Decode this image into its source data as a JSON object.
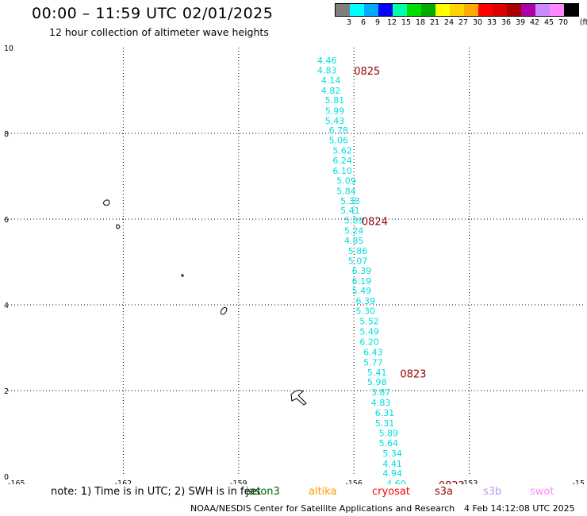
{
  "title": "00:00 – 11:59 UTC 02/01/2025",
  "subtitle": "12 hour collection of altimeter wave heights",
  "color_scale": {
    "unit": "(ft)",
    "colors": [
      "#7f7f7f",
      "#00ffff",
      "#00aaff",
      "#0000ff",
      "#00ffaa",
      "#00dd00",
      "#00aa00",
      "#ffff00",
      "#ffd200",
      "#ffaa00",
      "#ff0000",
      "#dd0000",
      "#aa0000",
      "#aa00aa",
      "#cc88ff",
      "#ff88ff",
      "#000000"
    ],
    "labels": [
      "3",
      "6",
      "9",
      "12",
      "15",
      "18",
      "21",
      "24",
      "27",
      "30",
      "33",
      "36",
      "39",
      "42",
      "45",
      "70"
    ]
  },
  "axes": {
    "x_ticks": [
      "-165",
      "-162",
      "-159",
      "-156",
      "-153",
      "-15"
    ],
    "y_ticks": [
      "10",
      "8",
      "6",
      "4",
      "2",
      "0"
    ]
  },
  "chart_data": {
    "type": "scatter",
    "title": "12 hour collection of altimeter wave heights",
    "x_range": [
      -165,
      -150
    ],
    "y_range": [
      0,
      10
    ],
    "grid": true,
    "track_color": "#00dddd",
    "points": [
      {
        "lon": -156.7,
        "lat": 9.7,
        "swh": "4.46"
      },
      {
        "lon": -156.7,
        "lat": 9.47,
        "swh": "4.83"
      },
      {
        "lon": -156.6,
        "lat": 9.24,
        "swh": "4.14"
      },
      {
        "lon": -156.6,
        "lat": 9.0,
        "swh": "4.82"
      },
      {
        "lon": -156.5,
        "lat": 8.78,
        "swh": "5.81"
      },
      {
        "lon": -156.5,
        "lat": 8.53,
        "swh": "5.99"
      },
      {
        "lon": -156.5,
        "lat": 8.3,
        "swh": "5.43"
      },
      {
        "lon": -156.4,
        "lat": 8.07,
        "swh": "6.78"
      },
      {
        "lon": -156.4,
        "lat": 7.84,
        "swh": "5.06"
      },
      {
        "lon": -156.3,
        "lat": 7.6,
        "swh": "5.62"
      },
      {
        "lon": -156.3,
        "lat": 7.37,
        "swh": "6.24"
      },
      {
        "lon": -156.3,
        "lat": 7.13,
        "swh": "6.10"
      },
      {
        "lon": -156.2,
        "lat": 6.9,
        "swh": "5.09"
      },
      {
        "lon": -156.2,
        "lat": 6.66,
        "swh": "5.84"
      },
      {
        "lon": -156.1,
        "lat": 6.43,
        "swh": "5.38"
      },
      {
        "lon": -156.1,
        "lat": 6.2,
        "swh": "5.41"
      },
      {
        "lon": -156.0,
        "lat": 5.97,
        "swh": "5.89"
      },
      {
        "lon": -156.0,
        "lat": 5.73,
        "swh": "5.24"
      },
      {
        "lon": -156.0,
        "lat": 5.5,
        "swh": "4.85"
      },
      {
        "lon": -155.9,
        "lat": 5.26,
        "swh": "5.86"
      },
      {
        "lon": -155.9,
        "lat": 5.03,
        "swh": "5.07"
      },
      {
        "lon": -155.8,
        "lat": 4.8,
        "swh": "6.39"
      },
      {
        "lon": -155.8,
        "lat": 4.56,
        "swh": "6.19"
      },
      {
        "lon": -155.8,
        "lat": 4.33,
        "swh": "5.49"
      },
      {
        "lon": -155.7,
        "lat": 4.09,
        "swh": "6.39"
      },
      {
        "lon": -155.7,
        "lat": 3.86,
        "swh": "5.30"
      },
      {
        "lon": -155.6,
        "lat": 3.62,
        "swh": "5.52"
      },
      {
        "lon": -155.6,
        "lat": 3.38,
        "swh": "5.49"
      },
      {
        "lon": -155.6,
        "lat": 3.14,
        "swh": "6.20"
      },
      {
        "lon": -155.5,
        "lat": 2.9,
        "swh": "6.43"
      },
      {
        "lon": -155.5,
        "lat": 2.66,
        "swh": "5.77"
      },
      {
        "lon": -155.4,
        "lat": 2.43,
        "swh": "5.41"
      },
      {
        "lon": -155.4,
        "lat": 2.2,
        "swh": "5.98"
      },
      {
        "lon": -155.3,
        "lat": 1.96,
        "swh": "3.87"
      },
      {
        "lon": -155.3,
        "lat": 1.72,
        "swh": "4.83"
      },
      {
        "lon": -155.2,
        "lat": 1.48,
        "swh": "6.31"
      },
      {
        "lon": -155.2,
        "lat": 1.24,
        "swh": "5.31"
      },
      {
        "lon": -155.1,
        "lat": 1.01,
        "swh": "5.89"
      },
      {
        "lon": -155.1,
        "lat": 0.78,
        "swh": "5.64"
      },
      {
        "lon": -155.0,
        "lat": 0.54,
        "swh": "5.34"
      },
      {
        "lon": -155.0,
        "lat": 0.3,
        "swh": "4.41"
      },
      {
        "lon": -155.0,
        "lat": 0.07,
        "swh": "4.94"
      },
      {
        "lon": -154.9,
        "lat": -0.17,
        "swh": "4.60"
      }
    ],
    "time_labels": [
      {
        "lon": -156.0,
        "lat": 9.46,
        "text": "0825"
      },
      {
        "lon": -155.8,
        "lat": 5.95,
        "text": "0824"
      },
      {
        "lon": -154.8,
        "lat": 2.4,
        "text": "0823"
      },
      {
        "lon": -153.8,
        "lat": -0.2,
        "text": "0822"
      }
    ]
  },
  "legend": {
    "note": "note:  1) Time is in UTC;  2) SWH is in feet",
    "satellites": [
      {
        "name": "jason3",
        "color": "#006600"
      },
      {
        "name": "altika",
        "color": "#ff9900"
      },
      {
        "name": "cryosat",
        "color": "#ff0000"
      },
      {
        "name": "s3a",
        "color": "#990000"
      },
      {
        "name": "s3b",
        "color": "#bb99ee"
      },
      {
        "name": "swot",
        "color": "#ff88ff"
      }
    ]
  },
  "footer": {
    "credit": "NOAA/NESDIS Center for Satellite Applications and Research",
    "timestamp": "4 Feb 14:12:08 UTC 2025"
  }
}
